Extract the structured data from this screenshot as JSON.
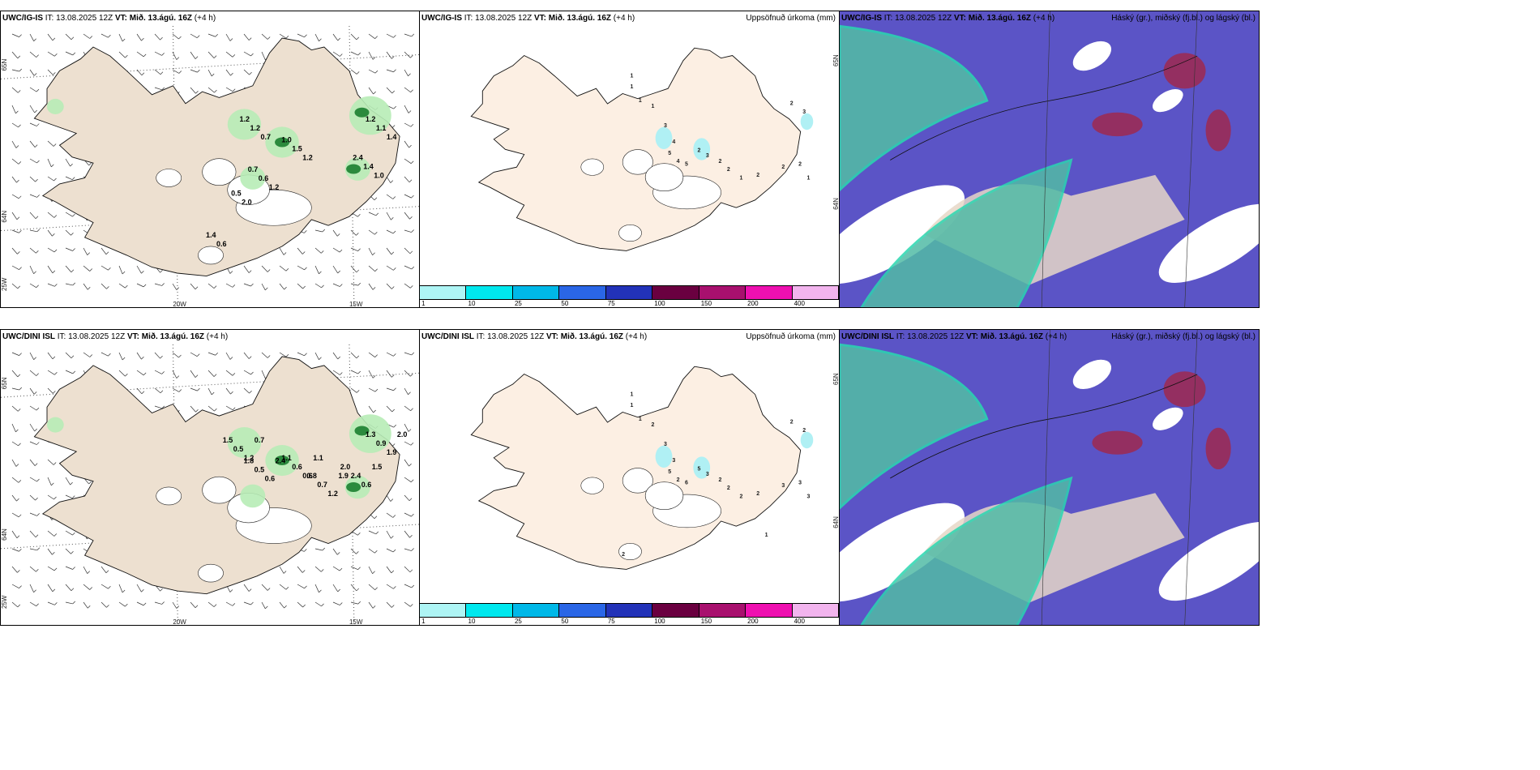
{
  "rows": [
    {
      "wind": {
        "model": "UWC/IG-IS",
        "it_label": "IT:",
        "it": "13.08.2025 12Z",
        "vt_label": "VT:",
        "vt": "Mið. 13.ágú. 16Z",
        "lead": "(+4 h)",
        "lat_labels": [
          "65N",
          "64N",
          "25W"
        ],
        "lon_labels": [
          "20W",
          "15W"
        ],
        "values": [
          "1.2",
          "1.0",
          "1.2",
          "2.4",
          "0.7",
          "0.5",
          "1.4",
          "1.2",
          "1.5",
          "1.1",
          "1.4",
          "0.6",
          "2.0",
          "0.6",
          "0.7",
          "1.2",
          "1.4",
          "1.0",
          "1.2"
        ]
      },
      "precip": {
        "model": "UWC/IG-IS",
        "it_label": "IT:",
        "it": "13.08.2025 12Z",
        "vt_label": "VT:",
        "vt": "Mið. 13.ágú. 16Z",
        "lead": "(+4 h)",
        "right": "Uppsöfnuð úrkoma (mm)",
        "side_labels": [
          "65N",
          "64N"
        ],
        "values": [
          "1",
          "1",
          "1",
          "1",
          "3",
          "4",
          "5",
          "4",
          "2",
          "5",
          "3",
          "2",
          "1",
          "2",
          "2",
          "2",
          "3",
          "2",
          "2",
          "1"
        ]
      },
      "cloud": {
        "model": "UWC/IG-IS",
        "it_label": "IT:",
        "it": "13.08.2025 12Z",
        "vt_label": "VT:",
        "vt": "Mið. 13.ágú. 16Z",
        "lead": "(+4 h)",
        "right": "Háský (gr.), miðský (fj.bl.) og lágský (bl.)"
      }
    },
    {
      "wind": {
        "model": "UWC/DINI ISL",
        "it_label": "IT:",
        "it": "13.08.2025 12Z",
        "vt_label": "VT:",
        "vt": "Mið. 13.ágú. 16Z",
        "lead": "(+4 h)",
        "lat_labels": [
          "65N",
          "64N",
          "25W"
        ],
        "lon_labels": [
          "20W",
          "15W"
        ],
        "values": [
          "1.5",
          "1.8",
          "1.1",
          "0.8",
          "1.3",
          "2.0",
          "0.5",
          "0.5",
          "0.6",
          "0.7",
          "0.9",
          "2.4",
          "1.2",
          "0.6",
          "0.6",
          "1.2",
          "1.9",
          "0.6",
          "0.7",
          "2.4",
          "1.1",
          "1.9",
          "2.0",
          "1.5"
        ]
      },
      "precip": {
        "model": "UWC/DINI ISL",
        "it_label": "IT:",
        "it": "13.08.2025 12Z",
        "vt_label": "VT:",
        "vt": "Mið. 13.ágú. 16Z",
        "lead": "(+4 h)",
        "right": "Uppsöfnuð úrkoma (mm)",
        "side_labels": [
          "65N",
          "64N"
        ],
        "values": [
          "1",
          "1",
          "1",
          "2",
          "3",
          "3",
          "5",
          "2",
          "5",
          "6",
          "3",
          "2",
          "2",
          "2",
          "2",
          "2",
          "2",
          "3",
          "3",
          "3",
          "1",
          "2"
        ]
      },
      "cloud": {
        "model": "UWC/DINI ISL",
        "it_label": "IT:",
        "it": "13.08.2025 12Z",
        "vt_label": "VT:",
        "vt": "Mið. 13.ágú. 16Z",
        "lead": "(+4 h)",
        "right": "Háský (gr.), miðský (fj.bl.) og lágský (bl.)"
      }
    }
  ],
  "colorbar": {
    "labels": [
      "1",
      "10",
      "25",
      "50",
      "75",
      "100",
      "150",
      "200",
      "400"
    ],
    "colors": [
      "#aef5f5",
      "#00e8ee",
      "#00b8e8",
      "#2a66e6",
      "#2232b8",
      "#6a0040",
      "#a8106e",
      "#ee10b0",
      "#f2b4ee"
    ]
  },
  "colors": {
    "land": "#ede0d0",
    "land_precip": "#fcefe3",
    "cloud_high": "#52bba6",
    "cloud_mid": "#5b54c6",
    "cloud_low": "#e9e4f3",
    "cloud_red": "#9a2b55",
    "precip_light": "#b0f0f4",
    "wind_green": "#b7ecb6",
    "wind_dark": "#2b8a3d"
  }
}
